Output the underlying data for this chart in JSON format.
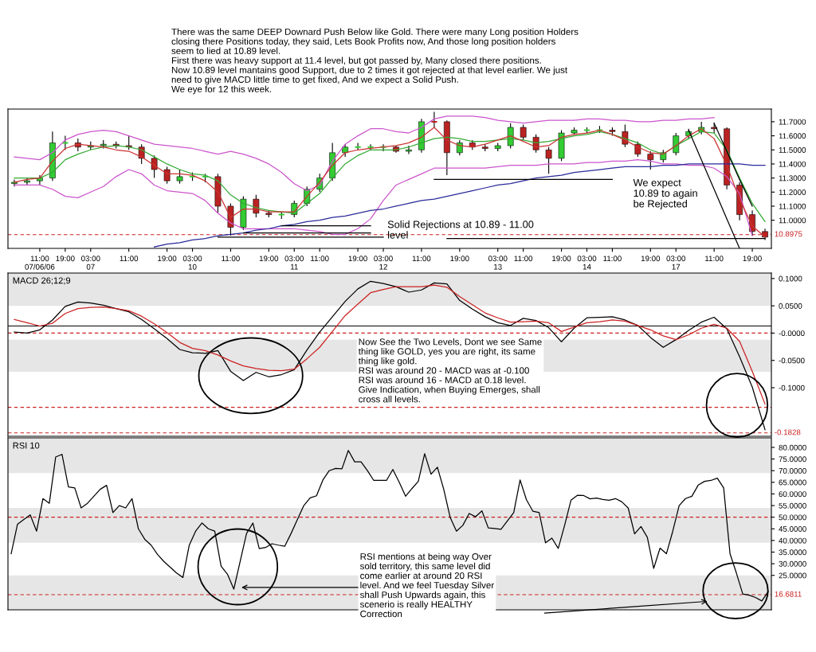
{
  "chart_data": [
    {
      "type": "candlestick",
      "categories": [
        null,
        null,
        "11:00\n07/06/06",
        null,
        "19:00",
        null,
        "03:00\n07",
        null,
        null,
        "11:00",
        null,
        null,
        "19:00",
        null,
        "03:00\n10",
        null,
        null,
        "11:00",
        null,
        null,
        "19:00",
        null,
        "03:00\n11",
        null,
        "11:00",
        null,
        null,
        "19:00",
        null,
        "03:00\n12",
        null,
        null,
        "11:00",
        null,
        null,
        "19:00",
        null,
        null,
        "03:00\n13",
        null,
        "11:00",
        null,
        null,
        "19:00",
        null,
        "03:00\n14",
        null,
        "11:00",
        null,
        null,
        "19:00",
        null,
        "03:00\n17",
        null,
        null,
        "11:00",
        null,
        null,
        "19:00",
        null
      ],
      "ohlc": [
        [
          11.26,
          11.29,
          11.24,
          11.27
        ],
        [
          11.27,
          11.3,
          11.25,
          11.28
        ],
        [
          11.28,
          11.32,
          11.25,
          11.3
        ],
        [
          11.3,
          11.63,
          11.28,
          11.55
        ],
        [
          11.55,
          11.6,
          11.5,
          11.55
        ],
        [
          11.55,
          11.58,
          11.49,
          11.52
        ],
        [
          11.52,
          11.56,
          11.5,
          11.53
        ],
        [
          11.53,
          11.57,
          11.51,
          11.54
        ],
        [
          11.54,
          11.56,
          11.51,
          11.53
        ],
        [
          11.53,
          11.6,
          11.5,
          11.52
        ],
        [
          11.52,
          11.54,
          11.4,
          11.44
        ],
        [
          11.44,
          11.46,
          11.3,
          11.36
        ],
        [
          11.36,
          11.38,
          11.26,
          11.28
        ],
        [
          11.28,
          11.36,
          11.26,
          11.31
        ],
        [
          11.31,
          11.34,
          11.28,
          11.31
        ],
        [
          11.31,
          11.33,
          11.27,
          11.31
        ],
        [
          11.31,
          11.33,
          11.05,
          11.1
        ],
        [
          11.1,
          11.12,
          10.89,
          10.95
        ],
        [
          10.95,
          11.17,
          10.93,
          11.15
        ],
        [
          11.15,
          11.18,
          11.02,
          11.05
        ],
        [
          11.05,
          11.07,
          11.02,
          11.04
        ],
        [
          11.04,
          11.06,
          11.01,
          11.04
        ],
        [
          11.04,
          11.14,
          11.02,
          11.12
        ],
        [
          11.12,
          11.24,
          11.1,
          11.22
        ],
        [
          11.22,
          11.33,
          11.2,
          11.3
        ],
        [
          11.3,
          11.55,
          11.28,
          11.48
        ],
        [
          11.48,
          11.54,
          11.45,
          11.52
        ],
        [
          11.52,
          11.55,
          11.5,
          11.52
        ],
        [
          11.52,
          11.54,
          11.5,
          11.52
        ],
        [
          11.52,
          11.54,
          11.49,
          11.52
        ],
        [
          11.52,
          11.53,
          11.48,
          11.49
        ],
        [
          11.49,
          11.53,
          11.47,
          11.5
        ],
        [
          11.5,
          11.72,
          11.48,
          11.7
        ],
        [
          11.7,
          11.77,
          11.66,
          11.7
        ],
        [
          11.7,
          11.71,
          11.32,
          11.48
        ],
        [
          11.48,
          11.57,
          11.46,
          11.55
        ],
        [
          11.55,
          11.57,
          11.5,
          11.52
        ],
        [
          11.52,
          11.54,
          11.49,
          11.51
        ],
        [
          11.51,
          11.55,
          11.49,
          11.53
        ],
        [
          11.53,
          11.69,
          11.51,
          11.66
        ],
        [
          11.66,
          11.68,
          11.57,
          11.59
        ],
        [
          11.59,
          11.61,
          11.48,
          11.5
        ],
        [
          11.5,
          11.52,
          11.33,
          11.44
        ],
        [
          11.44,
          11.64,
          11.42,
          11.62
        ],
        [
          11.62,
          11.66,
          11.61,
          11.64
        ],
        [
          11.64,
          11.66,
          11.62,
          11.64
        ],
        [
          11.64,
          11.67,
          11.62,
          11.64
        ],
        [
          11.64,
          11.66,
          11.6,
          11.63
        ],
        [
          11.63,
          11.68,
          11.52,
          11.54
        ],
        [
          11.54,
          11.56,
          11.45,
          11.47
        ],
        [
          11.47,
          11.49,
          11.36,
          11.43
        ],
        [
          11.43,
          11.5,
          11.41,
          11.48
        ],
        [
          11.48,
          11.62,
          11.46,
          11.6
        ],
        [
          11.6,
          11.65,
          11.58,
          11.63
        ],
        [
          11.63,
          11.7,
          11.61,
          11.66
        ],
        [
          11.66,
          11.69,
          11.62,
          11.65
        ],
        [
          11.65,
          11.66,
          11.22,
          11.25
        ],
        [
          11.25,
          11.27,
          11.0,
          11.04
        ],
        [
          11.04,
          11.07,
          10.89,
          10.92
        ],
        [
          10.92,
          10.94,
          10.86,
          10.88
        ]
      ],
      "colors": [
        "#33cc33",
        "#33cc33",
        "#33cc33",
        "#33cc33",
        "#33cc33",
        "#bb2222",
        "#33cc33",
        "#33cc33",
        "#bb2222",
        "#bb2222",
        "#bb2222",
        "#bb2222",
        "#bb2222",
        "#33cc33",
        "#33cc33",
        "#33cc33",
        "#bb2222",
        "#bb2222",
        "#33cc33",
        "#bb2222",
        "#bb2222",
        "#33cc33",
        "#33cc33",
        "#33cc33",
        "#33cc33",
        "#33cc33",
        "#33cc33",
        "#33cc33",
        "#33cc33",
        "#33cc33",
        "#bb2222",
        "#33cc33",
        "#33cc33",
        "#bb2222",
        "#bb2222",
        "#33cc33",
        "#bb2222",
        "#bb2222",
        "#33cc33",
        "#33cc33",
        "#bb2222",
        "#bb2222",
        "#bb2222",
        "#33cc33",
        "#33cc33",
        "#33cc33",
        "#33cc33",
        "#bb2222",
        "#bb2222",
        "#bb2222",
        "#bb2222",
        "#33cc33",
        "#33cc33",
        "#33cc33",
        "#33cc33",
        "#bb2222",
        "#bb2222",
        "#bb2222",
        "#bb2222",
        "#bb2222"
      ],
      "series": [
        {
          "type": "line",
          "color": "#cc55cc",
          "values": [
            11.45,
            11.44,
            11.43,
            11.48,
            11.57,
            11.61,
            11.63,
            11.64,
            11.63,
            11.6,
            11.57,
            11.54,
            11.53,
            11.52,
            11.51,
            11.49,
            11.47,
            11.49,
            11.47,
            11.44,
            11.4,
            11.34,
            11.26,
            11.21,
            11.25,
            11.42,
            11.54,
            11.6,
            11.65,
            11.65,
            11.63,
            11.62,
            11.66,
            11.72,
            11.74,
            11.74,
            11.74,
            11.73,
            11.71,
            11.7,
            11.69,
            11.7,
            11.71,
            11.71,
            11.71,
            11.72,
            11.72,
            11.71,
            11.71,
            11.7,
            11.7,
            11.71,
            11.71,
            11.72,
            11.72,
            11.73,
            null,
            null,
            null,
            null
          ]
        },
        {
          "type": "line",
          "color": "#cc55cc",
          "values": [
            11.25,
            11.25,
            11.25,
            11.22,
            11.17,
            11.16,
            11.2,
            11.24,
            11.31,
            11.36,
            11.33,
            11.25,
            11.21,
            11.2,
            11.19,
            11.14,
            11.05,
            10.98,
            10.94,
            10.94,
            10.94,
            10.94,
            10.94,
            10.93,
            10.92,
            10.9,
            10.9,
            10.94,
            11.01,
            11.14,
            11.25,
            11.29,
            11.33,
            11.37,
            11.37,
            11.37,
            11.37,
            11.37,
            11.38,
            11.39,
            11.39,
            11.39,
            11.4,
            11.4,
            11.4,
            11.41,
            11.41,
            11.42,
            11.42,
            11.43,
            11.42,
            11.4,
            11.4,
            11.39,
            11.39,
            11.37,
            11.31,
            11.19,
            10.89,
            null
          ]
        },
        {
          "type": "line",
          "color": "#33aa33",
          "values": [
            11.3,
            11.3,
            11.3,
            11.34,
            11.43,
            11.47,
            11.5,
            11.52,
            11.53,
            11.52,
            11.5,
            11.45,
            11.4,
            11.36,
            11.33,
            11.32,
            11.28,
            11.18,
            11.12,
            11.09,
            11.07,
            11.06,
            11.05,
            11.12,
            11.19,
            11.3,
            11.4,
            11.46,
            11.5,
            11.5,
            11.5,
            11.52,
            11.55,
            11.58,
            11.59,
            11.58,
            11.56,
            11.56,
            11.57,
            11.58,
            11.57,
            11.55,
            11.56,
            11.58,
            11.6,
            11.61,
            11.63,
            11.61,
            11.58,
            11.55,
            11.5,
            11.47,
            11.53,
            11.58,
            11.63,
            11.62,
            11.5,
            11.3,
            11.12,
            10.99
          ]
        },
        {
          "type": "line",
          "color": "#cc3333",
          "values": [
            11.27,
            11.29,
            11.3,
            11.42,
            11.51,
            11.54,
            11.53,
            11.52,
            11.5,
            11.49,
            11.45,
            11.39,
            11.33,
            11.33,
            11.32,
            11.28,
            11.2,
            11.02,
            11.08,
            11.08,
            11.06,
            11.06,
            11.06,
            11.17,
            11.27,
            11.39,
            11.48,
            11.5,
            11.51,
            11.52,
            11.53,
            11.55,
            11.59,
            11.66,
            11.57,
            11.53,
            11.52,
            11.54,
            11.57,
            11.6,
            11.56,
            11.52,
            11.53,
            11.59,
            11.61,
            11.62,
            11.64,
            11.61,
            11.57,
            11.52,
            11.48,
            11.47,
            11.53,
            11.6,
            11.65,
            11.58,
            11.39,
            11.15,
            10.96,
            10.88
          ]
        },
        {
          "type": "line",
          "color": "#2a2a9a",
          "values": [
            null,
            null,
            null,
            null,
            null,
            null,
            null,
            null,
            null,
            null,
            null,
            10.81,
            10.83,
            10.84,
            10.86,
            10.87,
            10.89,
            10.9,
            10.91,
            10.93,
            10.94,
            10.96,
            10.97,
            10.99,
            11.0,
            11.02,
            11.03,
            11.05,
            11.07,
            11.08,
            11.1,
            11.12,
            11.14,
            11.15,
            11.17,
            11.19,
            11.21,
            11.23,
            11.25,
            11.26,
            11.28,
            11.3,
            11.31,
            11.32,
            11.34,
            11.35,
            11.36,
            11.37,
            11.38,
            11.38,
            11.38,
            11.39,
            11.39,
            11.4,
            11.4,
            11.4,
            11.4,
            11.4,
            11.39,
            11.39
          ]
        },
        {
          "type": "line",
          "color": "#000000",
          "values": [
            null,
            null,
            null,
            null,
            null,
            null,
            null,
            null,
            null,
            null,
            null,
            null,
            null,
            null,
            null,
            null,
            null,
            null,
            null,
            null,
            null,
            null,
            null,
            null,
            null,
            null,
            null,
            null,
            null,
            null,
            null,
            null,
            null,
            11.29,
            11.29,
            11.29,
            11.29,
            11.29,
            11.29,
            11.29,
            11.29,
            11.29,
            11.29,
            11.29,
            11.29,
            11.29,
            11.29,
            11.29,
            null,
            null,
            null,
            null,
            null,
            null,
            null,
            null,
            null,
            null,
            null,
            null
          ]
        },
        {
          "type": "line",
          "color": "#000000",
          "values": [
            null,
            null,
            null,
            null,
            null,
            null,
            null,
            null,
            null,
            null,
            null,
            null,
            null,
            null,
            null,
            null,
            null,
            null,
            null,
            null,
            null,
            null,
            null,
            null,
            null,
            null,
            null,
            null,
            null,
            null,
            null,
            null,
            null,
            null,
            10.87,
            10.87,
            10.87,
            10.87,
            10.87,
            10.87,
            10.87,
            10.87,
            10.87,
            10.87,
            10.87,
            10.87,
            10.87,
            10.87,
            10.87,
            10.87,
            10.87,
            10.87,
            10.87,
            10.87,
            10.87,
            10.87,
            10.87,
            10.87,
            10.87,
            10.87
          ]
        },
        {
          "type": "line",
          "color": "#000000",
          "values": [
            null,
            null,
            null,
            null,
            null,
            null,
            null,
            null,
            null,
            null,
            null,
            null,
            null,
            null,
            null,
            null,
            null,
            null,
            null,
            null,
            null,
            10.96,
            10.96,
            10.96,
            10.96,
            10.96,
            10.96,
            10.96,
            10.96,
            null,
            null,
            null,
            null,
            null,
            null,
            null,
            null,
            null,
            null,
            null,
            null,
            null,
            null,
            null,
            null,
            null,
            null,
            null,
            null,
            null,
            null,
            null,
            null,
            null,
            null,
            null,
            null,
            null,
            null,
            null
          ]
        },
        {
          "type": "line",
          "color": "#000000",
          "values": [
            null,
            null,
            null,
            null,
            null,
            null,
            null,
            null,
            null,
            null,
            null,
            null,
            null,
            null,
            null,
            null,
            null,
            null,
            10.91,
            10.91,
            10.91,
            10.91,
            10.91,
            10.91,
            10.91,
            10.91,
            10.91,
            10.91,
            10.91,
            null,
            null,
            null,
            null,
            null,
            null,
            null,
            null,
            null,
            null,
            null,
            null,
            null,
            null,
            null,
            null,
            null,
            null,
            null,
            null,
            null,
            null,
            null,
            null,
            null,
            null,
            null,
            null,
            null,
            null,
            null
          ]
        },
        {
          "type": "line",
          "color": "#000000",
          "values": [
            null,
            null,
            null,
            null,
            null,
            null,
            null,
            null,
            null,
            null,
            null,
            null,
            null,
            null,
            null,
            null,
            10.88,
            10.88,
            10.88,
            10.88,
            10.88,
            10.88,
            10.88,
            10.88,
            10.88,
            10.88,
            10.88,
            10.88,
            10.88,
            10.88,
            null,
            null,
            null,
            null,
            null,
            null,
            null,
            null,
            null,
            null,
            null,
            null,
            null,
            null,
            null,
            null,
            null,
            null,
            null,
            null,
            null,
            null,
            null,
            null,
            null,
            null,
            null,
            null,
            null,
            null
          ]
        },
        {
          "type": "line",
          "color": "#000000",
          "values": [
            null,
            null,
            null,
            null,
            null,
            null,
            null,
            null,
            null,
            null,
            null,
            null,
            null,
            null,
            null,
            null,
            null,
            null,
            null,
            null,
            null,
            null,
            null,
            null,
            null,
            null,
            null,
            null,
            null,
            null,
            null,
            null,
            null,
            null,
            null,
            null,
            null,
            null,
            null,
            null,
            null,
            null,
            null,
            null,
            null,
            null,
            null,
            null,
            null,
            null,
            null,
            null,
            null,
            11.64,
            11.43,
            11.22,
            11.01,
            10.8,
            null,
            null
          ]
        },
        {
          "type": "line",
          "color": "#000000",
          "values": [
            null,
            null,
            null,
            null,
            null,
            null,
            null,
            null,
            null,
            null,
            null,
            null,
            null,
            null,
            null,
            null,
            null,
            null,
            null,
            null,
            null,
            null,
            null,
            null,
            null,
            null,
            null,
            null,
            null,
            null,
            null,
            null,
            null,
            null,
            null,
            null,
            null,
            null,
            null,
            null,
            null,
            null,
            null,
            null,
            null,
            null,
            null,
            null,
            null,
            null,
            null,
            null,
            null,
            null,
            null,
            11.69,
            11.49,
            11.29,
            11.1,
            null
          ]
        }
      ],
      "ylim": [
        10.8,
        11.79
      ],
      "yticks": [
        {
          "value": 11.7,
          "label": "11.7000"
        },
        {
          "value": 11.6,
          "label": "11.6000"
        },
        {
          "value": 11.5,
          "label": "11.5000"
        },
        {
          "value": 11.4,
          "label": "11.4000"
        },
        {
          "value": 11.3,
          "label": "11.3000"
        },
        {
          "value": 11.2,
          "label": "11.2000"
        },
        {
          "value": 11.1,
          "label": "11.1000"
        },
        {
          "value": 11.0,
          "label": "11.0000"
        }
      ],
      "ref_lines": [
        {
          "axis": "y",
          "value": 10.8975,
          "label": "10.8975",
          "color": "#cc2222",
          "line_style": "dashed"
        }
      ],
      "annotations": [
        "There was the same DEEP Downard Push Below like Gold. There were many Long position Holders\nclosing there Positions today, they said, Lets Book Profits now, And those long position holders\nseem to lied at 10.89 level.\nFirst there was heavy support at 11.4 level, but got passed by, Many closed there positions.\nNow 10.89 level mantains good Support, due to 2 times it got rejected at that level earlier. We just\nneed to give MACD little time to get fixed, And we expect a Solid Push.\nWe eye for 12 this week.",
        "Solid Rejections at 10.89 - 11.00\nlevel",
        "We expect\n10.89 to again\nbe Rejected"
      ]
    },
    {
      "type": "line",
      "title": "MACD 26;12;9",
      "categories": [
        null,
        null,
        null,
        null,
        null,
        null,
        null,
        null,
        null,
        null,
        null,
        null,
        null,
        null,
        null,
        null,
        null,
        null,
        null,
        null,
        null,
        null,
        null,
        null,
        null,
        null,
        null,
        null,
        null,
        null,
        null,
        null,
        null,
        null,
        null,
        null,
        null,
        null,
        null,
        null,
        null,
        null,
        null,
        null,
        null,
        null,
        null,
        null,
        null,
        null,
        null,
        null,
        null,
        null,
        null,
        null,
        null,
        null,
        null,
        null
      ],
      "series": [
        {
          "color": "#000000",
          "values": [
            0.002,
            0.0,
            0.006,
            0.024,
            0.049,
            0.057,
            0.055,
            0.051,
            0.045,
            0.039,
            0.025,
            0.008,
            -0.01,
            -0.03,
            -0.036,
            -0.037,
            -0.032,
            -0.07,
            -0.087,
            -0.072,
            -0.08,
            -0.076,
            -0.067,
            -0.031,
            0.002,
            0.03,
            0.058,
            0.081,
            0.095,
            0.091,
            0.085,
            0.075,
            0.079,
            0.092,
            0.09,
            0.06,
            0.044,
            0.03,
            0.019,
            0.014,
            0.027,
            0.023,
            0.01,
            -0.016,
            0.009,
            0.028,
            0.029,
            0.03,
            0.024,
            0.014,
            -0.008,
            -0.026,
            -0.012,
            0.005,
            0.02,
            0.029,
            0.008,
            -0.043,
            -0.099,
            -0.177
          ]
        },
        {
          "color": "#cc2222",
          "values": [
            0.025,
            0.019,
            0.013,
            0.018,
            0.036,
            0.045,
            0.047,
            0.048,
            0.045,
            0.041,
            0.031,
            0.017,
            0.001,
            -0.017,
            -0.028,
            -0.032,
            -0.04,
            -0.051,
            -0.06,
            -0.065,
            -0.068,
            -0.069,
            -0.066,
            -0.047,
            -0.026,
            0.003,
            0.032,
            0.053,
            0.074,
            0.08,
            0.085,
            0.085,
            0.085,
            0.088,
            0.084,
            0.067,
            0.052,
            0.037,
            0.028,
            0.02,
            0.021,
            0.022,
            0.019,
            0.003,
            0.011,
            0.019,
            0.021,
            0.024,
            0.022,
            0.014,
            0.006,
            -0.005,
            -0.012,
            -0.003,
            0.009,
            0.016,
            0.009,
            -0.015,
            -0.07,
            -0.13
          ]
        }
      ],
      "ylim": [
        -0.189,
        0.11
      ],
      "tick_labels": "y",
      "yticks": [
        {
          "value": 0.1,
          "label": "0.1000"
        },
        {
          "value": 0.05,
          "label": "0.0500"
        },
        {
          "value": 0,
          "label": "-0.0000"
        },
        {
          "value": -0.05,
          "label": "-0.0500"
        },
        {
          "value": -0.1,
          "label": "-0.1000"
        }
      ],
      "bands": [
        {
          "axis": "y",
          "from": 0.05,
          "to": 0.11,
          "color": "#e6e6e6"
        },
        {
          "axis": "y",
          "from": -0.071,
          "to": -0.012,
          "color": "#e6e6e6"
        }
      ],
      "ref_lines": [
        {
          "axis": "y",
          "value": 0,
          "color": "#cc2222",
          "line_style": "dashed"
        },
        {
          "axis": "y",
          "value": -0.136,
          "color": "#cc2222",
          "line_style": "dashed"
        },
        {
          "axis": "y",
          "value": -0.1828,
          "label": "-0.1828",
          "color": "#cc2222",
          "line_style": "dashed"
        },
        {
          "axis": "y",
          "value": 0.013,
          "color": "#000000",
          "line_style": "solid"
        }
      ],
      "annotations": [
        "Now See the Two Levels, Dont we see Same\nthing like GOLD, yes you are right, its same\nthing like gold.\nRSI was around 20 - MACD was at -0.100\nRSI was around 16 - MACD at 0.18 level.\nGive Indication, when Buying Emerges, shall\ncross all levels."
      ]
    },
    {
      "type": "line",
      "title": "RSI 10",
      "categories": [
        null,
        null,
        null,
        null,
        null,
        null,
        null,
        null,
        null,
        null,
        null,
        null,
        null,
        null,
        null,
        null,
        null,
        null,
        null,
        null,
        null,
        null,
        null,
        null,
        null,
        null,
        null,
        null,
        null,
        null,
        null,
        null,
        null,
        null,
        null,
        null,
        null,
        null,
        null,
        null,
        null,
        null,
        null,
        null,
        null,
        null,
        null,
        null,
        null,
        null,
        null,
        null,
        null,
        null,
        null,
        null,
        null,
        null,
        null,
        null,
        null,
        null,
        null,
        null,
        null,
        null,
        null,
        null,
        null,
        null,
        null,
        null,
        null,
        null,
        null,
        null,
        null,
        null,
        null,
        null,
        null,
        null,
        null,
        null,
        null,
        null,
        null,
        null,
        null,
        null,
        null,
        null,
        null,
        null,
        null,
        null,
        null,
        null,
        null,
        null,
        null,
        null,
        null,
        null,
        null,
        null,
        null,
        null,
        null,
        null,
        null,
        null,
        null,
        null,
        null,
        null,
        null,
        null,
        null,
        null
      ],
      "series": [
        {
          "color": "#000000",
          "values": [
            34.3,
            47,
            49,
            51,
            44,
            58,
            56,
            75.9,
            77,
            63,
            62.6,
            54,
            56,
            59,
            62,
            63.7,
            52,
            55,
            54,
            58,
            45,
            40.5,
            38,
            34,
            31,
            28.5,
            26,
            24.1,
            38,
            44,
            47.5,
            45,
            44,
            29,
            25.5,
            19.1,
            31,
            43,
            47.5,
            36.5,
            37,
            38.6,
            38,
            37.5,
            43,
            49,
            55,
            58.3,
            59.2,
            66,
            70,
            71,
            70.8,
            78.7,
            73.8,
            73.8,
            70,
            65.8,
            65.8,
            65.8,
            70.5,
            65,
            59,
            62.3,
            65.4,
            77.3,
            68.5,
            71.5,
            62,
            50,
            44,
            46.5,
            51.6,
            50.2,
            52.7,
            45.4,
            45.1,
            44.8,
            48.4,
            52,
            66,
            57.5,
            52.6,
            52,
            39,
            41,
            36.6,
            46.5,
            57.3,
            59.4,
            59.3,
            57.9,
            58.2,
            57.6,
            57.3,
            58,
            56.6,
            53.9,
            42.8,
            46,
            41.4,
            28,
            36.7,
            34.3,
            44,
            55,
            58,
            59,
            63.8,
            65.4,
            65.8,
            66.8,
            62.6,
            34.3,
            26,
            17,
            16.5,
            15.5,
            14,
            18
          ]
        }
      ],
      "ylim": [
        10.2,
        84.1
      ],
      "tick_labels": "y",
      "yticks": [
        {
          "value": 80,
          "label": "80.0000"
        },
        {
          "value": 75,
          "label": "75.0000"
        },
        {
          "value": 70,
          "label": "70.0000"
        },
        {
          "value": 65,
          "label": "65.0000"
        },
        {
          "value": 60,
          "label": "60.0000"
        },
        {
          "value": 55,
          "label": "55.0000"
        },
        {
          "value": 50,
          "label": "50.0000"
        },
        {
          "value": 45,
          "label": "45.0000"
        },
        {
          "value": 40,
          "label": "40.0000"
        },
        {
          "value": 35,
          "label": "35.0000"
        },
        {
          "value": 30,
          "label": "30.0000"
        },
        {
          "value": 25,
          "label": "25.0000"
        }
      ],
      "bands": [
        {
          "axis": "y",
          "from": 69,
          "to": 84.1,
          "color": "#e6e6e6"
        },
        {
          "axis": "y",
          "from": 39,
          "to": 54,
          "color": "#e6e6e6"
        },
        {
          "axis": "y",
          "from": 10.2,
          "to": 25,
          "color": "#e6e6e6"
        }
      ],
      "ref_lines": [
        {
          "axis": "y",
          "value": 50,
          "color": "#cc2222",
          "line_style": "dashed"
        },
        {
          "axis": "y",
          "value": 16.6811,
          "label": "16.6811",
          "color": "#cc2222",
          "line_style": "dashed"
        }
      ],
      "annotations": [
        "RSI mentions at being way Over\nsold territory, this same level did\ncome earlier at around 20 RSI\nlevel. And we feel Tuesday Silver\nshall Push Upwards again, this\nscenerio is really HEALTHY\nCorrection"
      ]
    }
  ]
}
